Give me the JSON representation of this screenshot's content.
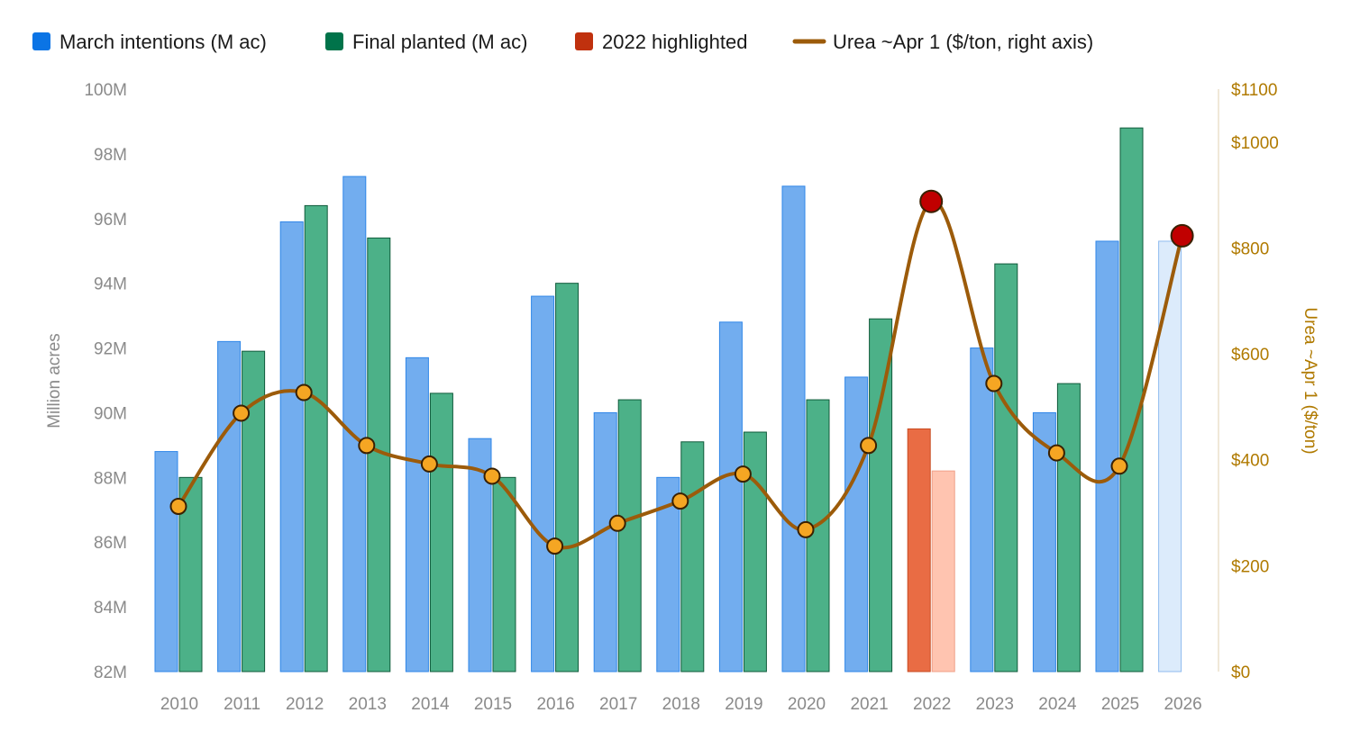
{
  "chart_data": {
    "type": "bar",
    "title": "",
    "categories": [
      "2010",
      "2011",
      "2012",
      "2013",
      "2014",
      "2015",
      "2016",
      "2017",
      "2018",
      "2019",
      "2020",
      "2021",
      "2022",
      "2023",
      "2024",
      "2025",
      "2026"
    ],
    "series": [
      {
        "name": "March intentions (M ac)",
        "type": "bar",
        "axis": "left",
        "values": [
          88.8,
          92.2,
          95.9,
          97.3,
          91.7,
          89.2,
          93.6,
          90.0,
          88.0,
          92.8,
          97.0,
          91.1,
          89.5,
          92.0,
          90.0,
          95.3,
          95.3
        ]
      },
      {
        "name": "Final planted (M ac)",
        "type": "bar",
        "axis": "left",
        "values": [
          88.0,
          91.9,
          96.4,
          95.4,
          90.6,
          88.0,
          94.0,
          90.4,
          89.1,
          89.4,
          90.4,
          92.9,
          88.2,
          94.6,
          90.9,
          98.8,
          null
        ]
      },
      {
        "name": "Urea ~Apr 1 ($/ton, right axis)",
        "type": "line",
        "axis": "right",
        "values": [
          312,
          488,
          527,
          427,
          392,
          369,
          237,
          280,
          322,
          373,
          268,
          427,
          888,
          544,
          413,
          388,
          823
        ]
      }
    ],
    "highlight": {
      "label": "2022 highlighted",
      "category": "2022"
    },
    "left_axis": {
      "label": "Million acres",
      "min": 82,
      "max": 100,
      "ticks": [
        "82M",
        "84M",
        "86M",
        "88M",
        "90M",
        "92M",
        "94M",
        "96M",
        "98M",
        "100M"
      ]
    },
    "right_axis": {
      "label": "Urea ~Apr 1 ($/ton)",
      "min": 0,
      "max": 1100,
      "ticks": [
        {
          "value": 0,
          "label": "$0"
        },
        {
          "value": 200,
          "label": "$200"
        },
        {
          "value": 400,
          "label": "$400"
        },
        {
          "value": 600,
          "label": "$600"
        },
        {
          "value": 800,
          "label": "$800"
        },
        {
          "value": 1000,
          "label": "$1000"
        },
        {
          "value": 1100,
          "label": "$1100"
        }
      ]
    },
    "grid": false,
    "legend_position": "top-left",
    "colors": {
      "intentions": "#2f86e8",
      "planted": "#1f9d6a",
      "highlight_intentions": "#e8643a",
      "highlight_planted": "#ffc4b0",
      "projection": "#dcebfb",
      "urea_line": "#9c5b0a",
      "urea_marker": "#f5a623",
      "urea_marker_peak": "#c00000",
      "legend_intentions": "#0b74e5",
      "legend_planted": "#00734a",
      "legend_highlight": "#c0310e"
    }
  },
  "legend": [
    {
      "label": "March intentions (M ac)",
      "icon": "square"
    },
    {
      "label": "Final planted (M ac)",
      "icon": "square"
    },
    {
      "label": "2022 highlighted",
      "icon": "square"
    },
    {
      "label": "Urea ~Apr 1 ($/ton, right axis)",
      "icon": "line"
    }
  ]
}
